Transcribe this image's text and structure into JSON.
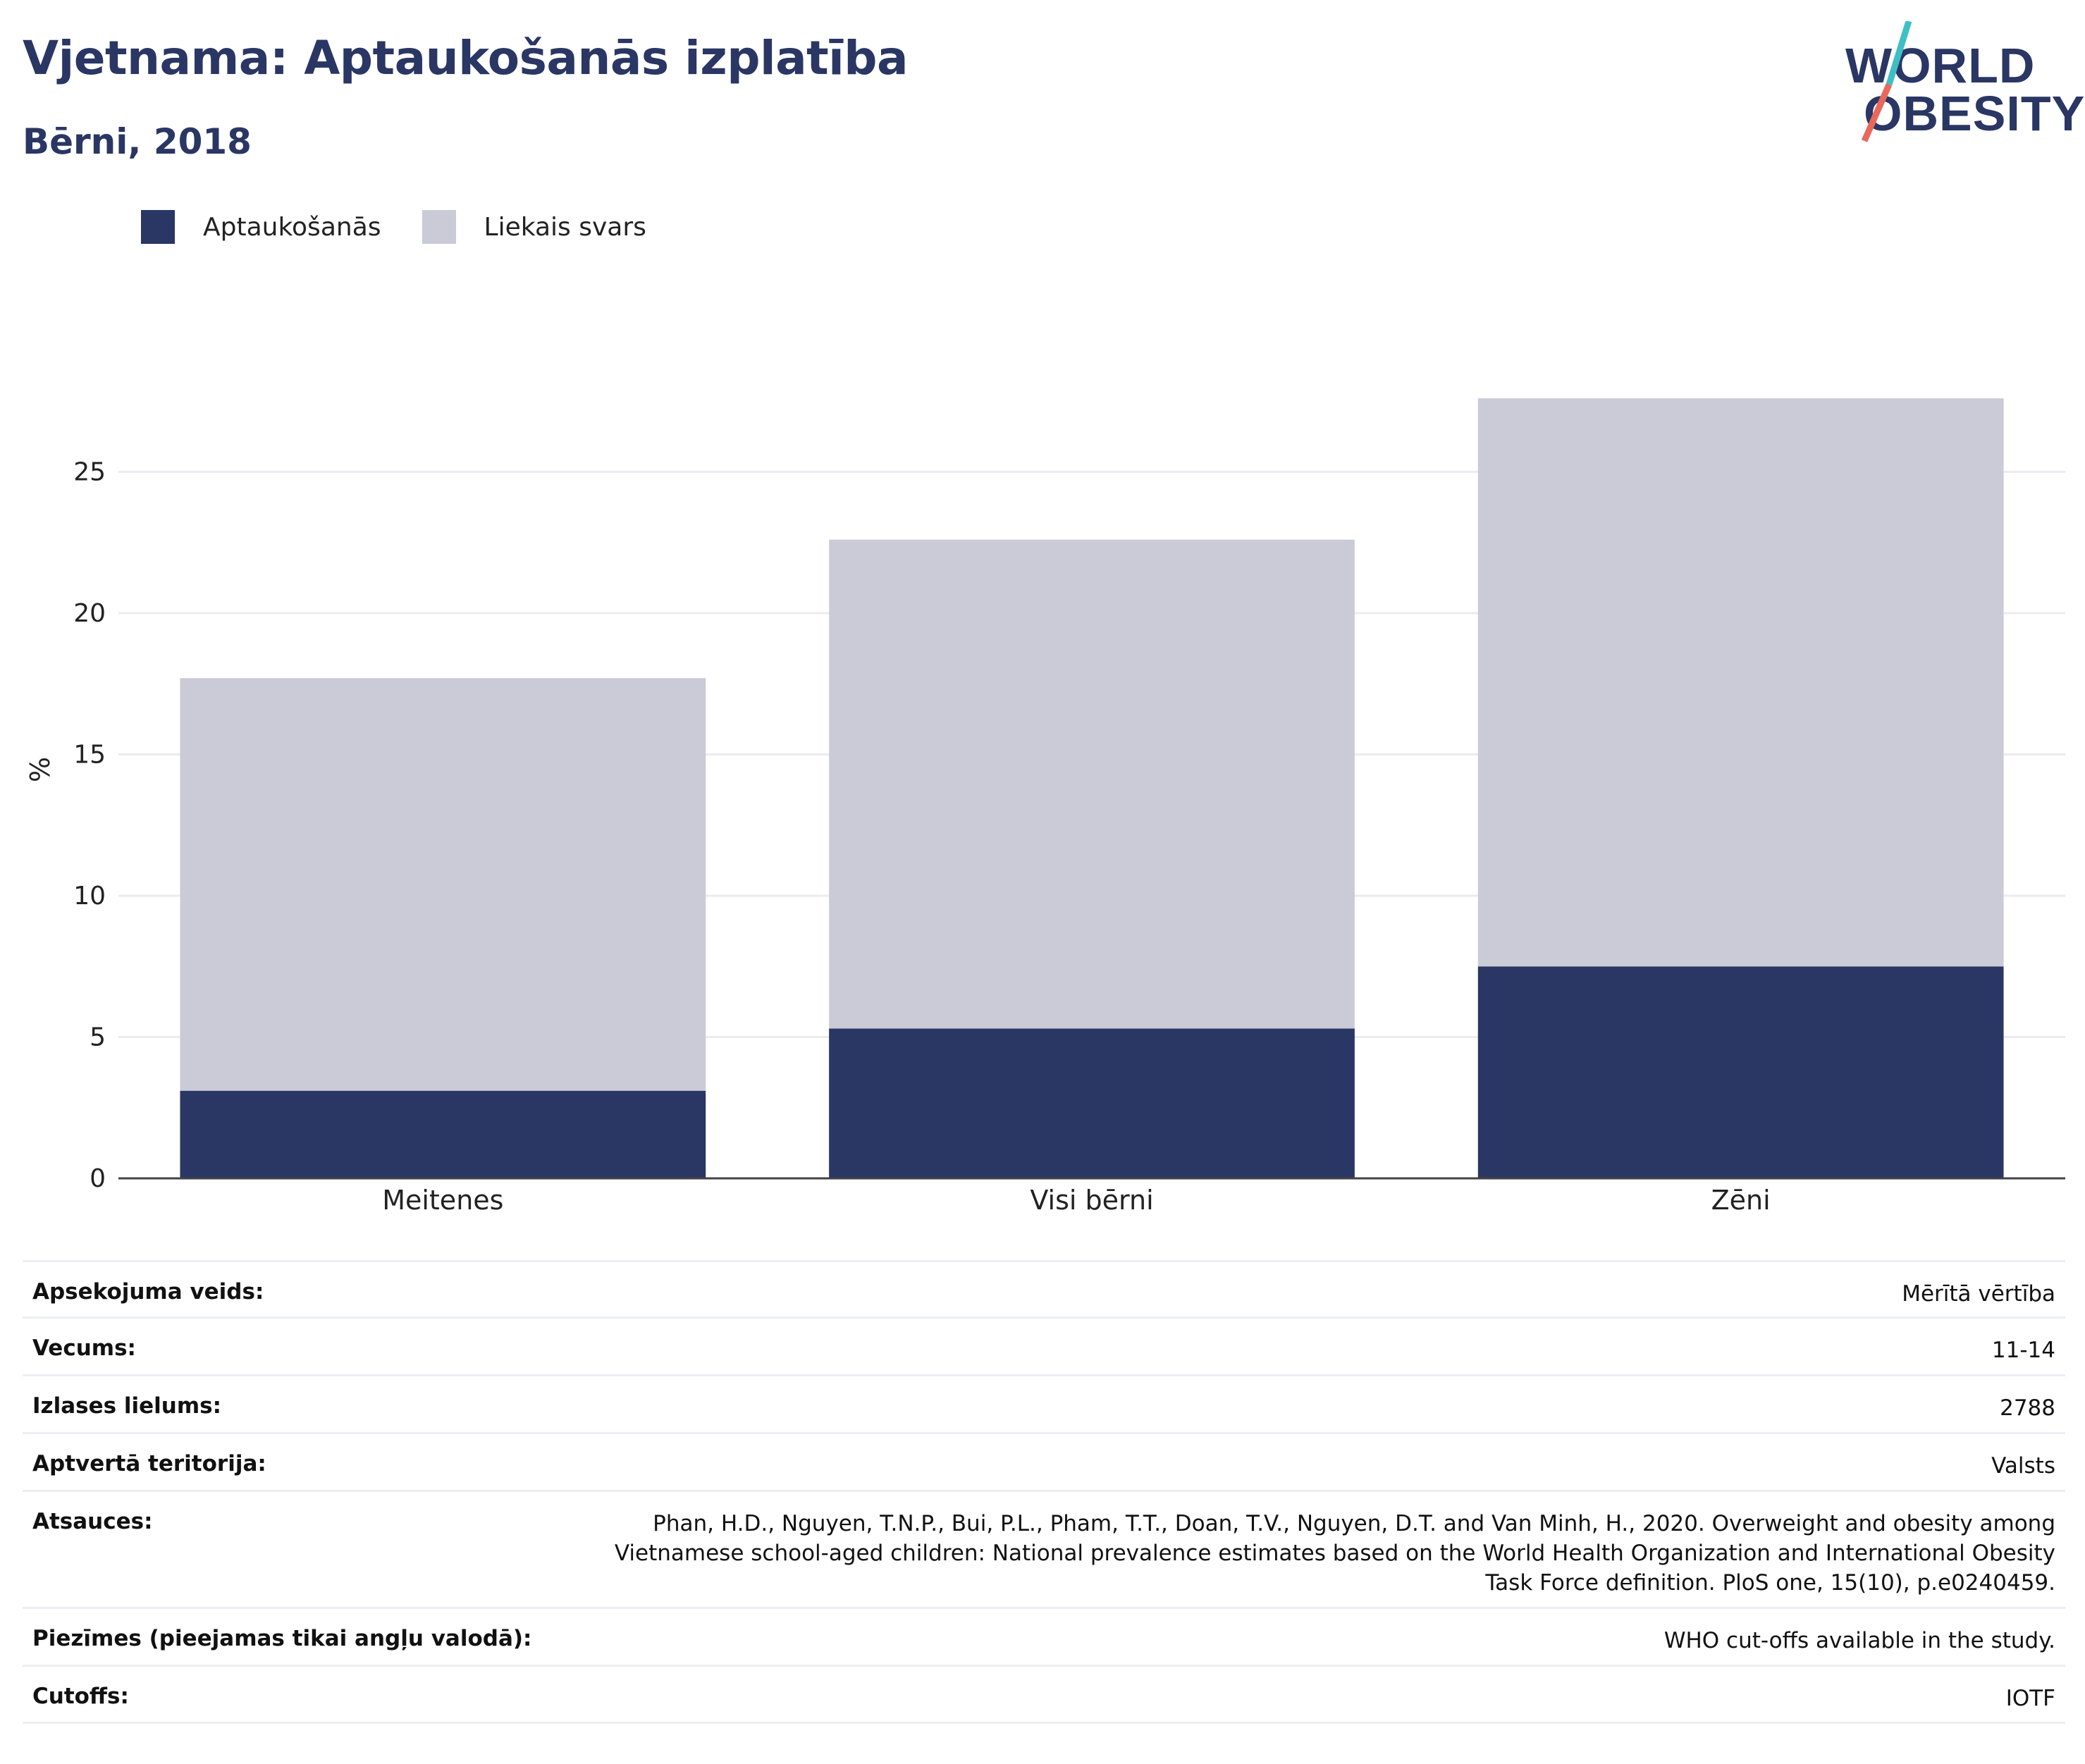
{
  "header": {
    "title": "Vjetnama: Aptaukošanās izplatība",
    "subtitle": "Bērni, 2018"
  },
  "logo": {
    "line1": "WORLD",
    "line2": "OBESITY",
    "accent_teal": "#3fbfc4",
    "accent_coral": "#e8685a"
  },
  "colors": {
    "obesity": "#2a3663",
    "overweight": "#cacbd7",
    "grid": "#ebebf0",
    "axis": "#444444"
  },
  "chart_data": {
    "type": "bar",
    "stacked": true,
    "categories": [
      "Meitenes",
      "Visi bērni",
      "Zēni"
    ],
    "series": [
      {
        "name": "Aptaukošanās",
        "values": [
          3.1,
          5.3,
          7.5
        ]
      },
      {
        "name": "Liekais svars",
        "values": [
          14.6,
          17.3,
          20.1
        ]
      }
    ],
    "totals": [
      17.7,
      22.6,
      27.6
    ],
    "ylabel": "%",
    "xlabel": "",
    "ylim": [
      0,
      27.6
    ],
    "yticks": [
      0,
      5,
      10,
      15,
      20,
      25
    ],
    "grid": true,
    "legend": "top-left"
  },
  "info": [
    {
      "label": "Apsekojuma veids:",
      "value": "Mērītā vērtība"
    },
    {
      "label": "Vecums:",
      "value": "11-14"
    },
    {
      "label": "Izlases lielums:",
      "value": "2788"
    },
    {
      "label": "Aptvertā teritorija:",
      "value": "Valsts"
    },
    {
      "label": "Atsauces:",
      "value_lines": [
        "Phan, H.D., Nguyen, T.N.P., Bui, P.L., Pham, T.T., Doan, T.V., Nguyen, D.T. and Van Minh, H., 2020. Overweight and obesity among",
        "Vietnamese school-aged children: National prevalence estimates based on the World Health Organization and International Obesity",
        "Task Force definition. PloS one, 15(10), p.e0240459."
      ]
    },
    {
      "label": "Piezīmes (pieejamas tikai angļu valodā):",
      "value": "WHO cut-offs available in the study."
    },
    {
      "label": "Cutoffs:",
      "value": "IOTF"
    }
  ]
}
